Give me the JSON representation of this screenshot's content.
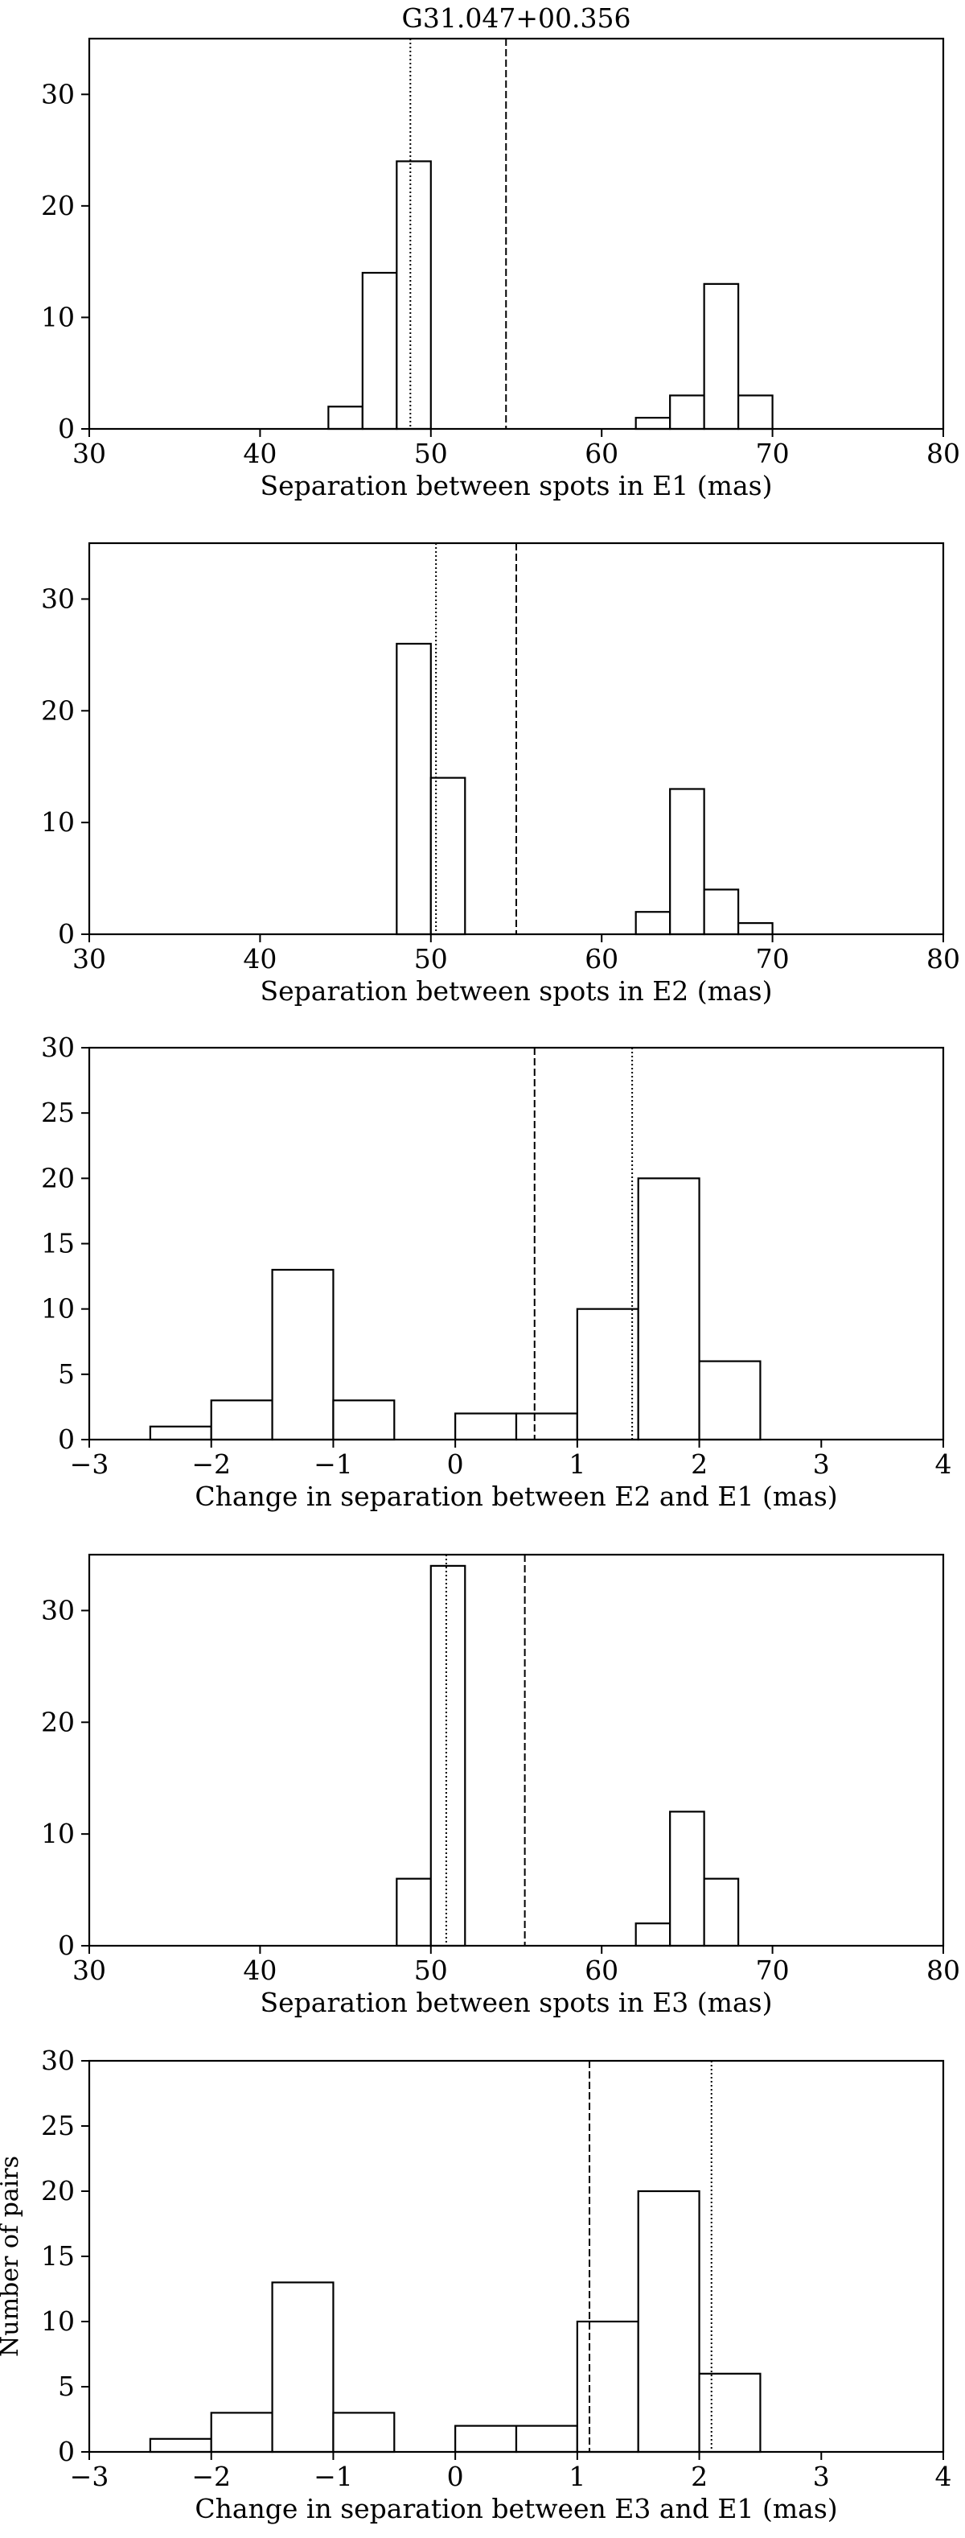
{
  "figure_title": "G31.047+00.356",
  "chart_data": [
    {
      "type": "bar",
      "subtype": "histogram",
      "xlabel": "Separation between spots in E1 (mas)",
      "ylabel": "",
      "xlim": [
        30,
        80
      ],
      "ylim": [
        0,
        35
      ],
      "xticks": [
        30,
        40,
        50,
        60,
        70,
        80
      ],
      "yticks": [
        0,
        10,
        20,
        30
      ],
      "bins": [
        [
          44,
          46,
          2
        ],
        [
          46,
          48,
          14
        ],
        [
          48,
          50,
          24
        ],
        [
          62,
          64,
          1
        ],
        [
          64,
          66,
          3
        ],
        [
          66,
          68,
          13
        ],
        [
          68,
          70,
          3
        ]
      ],
      "vlines": [
        {
          "x": 48.8,
          "style": "dotted"
        },
        {
          "x": 54.4,
          "style": "dashed"
        }
      ],
      "grid": false
    },
    {
      "type": "bar",
      "subtype": "histogram",
      "xlabel": "Separation between spots in E2 (mas)",
      "ylabel": "",
      "xlim": [
        30,
        80
      ],
      "ylim": [
        0,
        35
      ],
      "xticks": [
        30,
        40,
        50,
        60,
        70,
        80
      ],
      "yticks": [
        0,
        10,
        20,
        30
      ],
      "bins": [
        [
          48,
          50,
          26
        ],
        [
          50,
          52,
          14
        ],
        [
          62,
          64,
          2
        ],
        [
          64,
          66,
          13
        ],
        [
          66,
          68,
          4
        ],
        [
          68,
          70,
          1
        ]
      ],
      "vlines": [
        {
          "x": 50.3,
          "style": "dotted"
        },
        {
          "x": 55.0,
          "style": "dashed"
        }
      ],
      "grid": false
    },
    {
      "type": "bar",
      "subtype": "histogram",
      "xlabel": "Change in separation between E2 and E1 (mas)",
      "ylabel": "",
      "xlim": [
        -3,
        4
      ],
      "ylim": [
        0,
        30
      ],
      "xticks": [
        -3,
        -2,
        -1,
        0,
        1,
        2,
        3,
        4
      ],
      "xticklabels": [
        "−3",
        "−2",
        "−1",
        "0",
        "1",
        "2",
        "3",
        "4"
      ],
      "yticks": [
        0,
        5,
        10,
        15,
        20,
        25,
        30
      ],
      "bins": [
        [
          -2.5,
          -2.0,
          1
        ],
        [
          -2.0,
          -1.5,
          3
        ],
        [
          -1.5,
          -1.0,
          13
        ],
        [
          -1.0,
          -0.5,
          3
        ],
        [
          0.0,
          0.5,
          2
        ],
        [
          0.5,
          1.0,
          2
        ],
        [
          1.0,
          1.5,
          10
        ],
        [
          1.5,
          2.0,
          20
        ],
        [
          2.0,
          2.5,
          6
        ]
      ],
      "vlines": [
        {
          "x": 0.65,
          "style": "dashed"
        },
        {
          "x": 1.45,
          "style": "dotted"
        }
      ],
      "grid": false
    },
    {
      "type": "bar",
      "subtype": "histogram",
      "xlabel": "Separation between spots in E3 (mas)",
      "ylabel": "",
      "xlim": [
        30,
        80
      ],
      "ylim": [
        0,
        35
      ],
      "xticks": [
        30,
        40,
        50,
        60,
        70,
        80
      ],
      "yticks": [
        0,
        10,
        20,
        30
      ],
      "bins": [
        [
          48,
          50,
          6
        ],
        [
          50,
          52,
          34
        ],
        [
          62,
          64,
          2
        ],
        [
          64,
          66,
          12
        ],
        [
          66,
          68,
          6
        ]
      ],
      "vlines": [
        {
          "x": 50.9,
          "style": "dotted"
        },
        {
          "x": 55.5,
          "style": "dashed"
        }
      ],
      "grid": false
    },
    {
      "type": "bar",
      "subtype": "histogram",
      "xlabel": "Change in separation between E3 and E1 (mas)",
      "ylabel": "Number of pairs",
      "xlim": [
        -3,
        4
      ],
      "ylim": [
        0,
        30
      ],
      "xticks": [
        -3,
        -2,
        -1,
        0,
        1,
        2,
        3,
        4
      ],
      "xticklabels": [
        "−3",
        "−2",
        "−1",
        "0",
        "1",
        "2",
        "3",
        "4"
      ],
      "yticks": [
        0,
        5,
        10,
        15,
        20,
        25,
        30
      ],
      "bins": [
        [
          -2.5,
          -2.0,
          1
        ],
        [
          -2.0,
          -1.5,
          3
        ],
        [
          -1.5,
          -1.0,
          13
        ],
        [
          -1.0,
          -0.5,
          3
        ],
        [
          0.0,
          0.5,
          2
        ],
        [
          0.5,
          1.0,
          2
        ],
        [
          1.0,
          1.5,
          10
        ],
        [
          1.5,
          2.0,
          20
        ],
        [
          2.0,
          2.5,
          6
        ]
      ],
      "vlines": [
        {
          "x": 1.1,
          "style": "dashed"
        },
        {
          "x": 2.1,
          "style": "dotted"
        }
      ],
      "grid": false
    }
  ]
}
